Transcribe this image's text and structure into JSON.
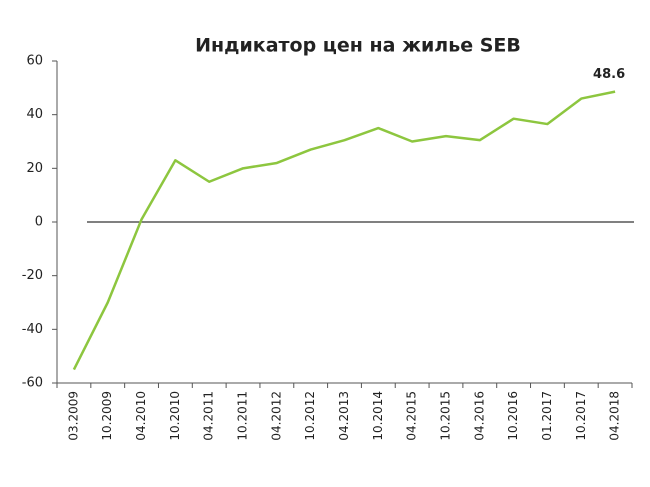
{
  "chart_data": {
    "type": "line",
    "title": "Индикатор цен на жилье SEB",
    "categories": [
      "03.2009",
      "10.2009",
      "04.2010",
      "10.2010",
      "04.2011",
      "10.2011",
      "04.2012",
      "10.2012",
      "04.2013",
      "10.2014",
      "04.2015",
      "10.2015",
      "04.2016",
      "10.2016",
      "01.2017",
      "10.2017",
      "04.2018"
    ],
    "values": [
      -55,
      -30,
      1,
      23,
      15,
      20,
      22,
      27,
      30.5,
      35,
      30,
      32,
      30.5,
      38.5,
      36.5,
      46,
      48.6
    ],
    "color": "#8dc63f",
    "ylim": [
      -60,
      60
    ],
    "yticks": [
      -60,
      -40,
      -20,
      0,
      20,
      40,
      60
    ]
  }
}
